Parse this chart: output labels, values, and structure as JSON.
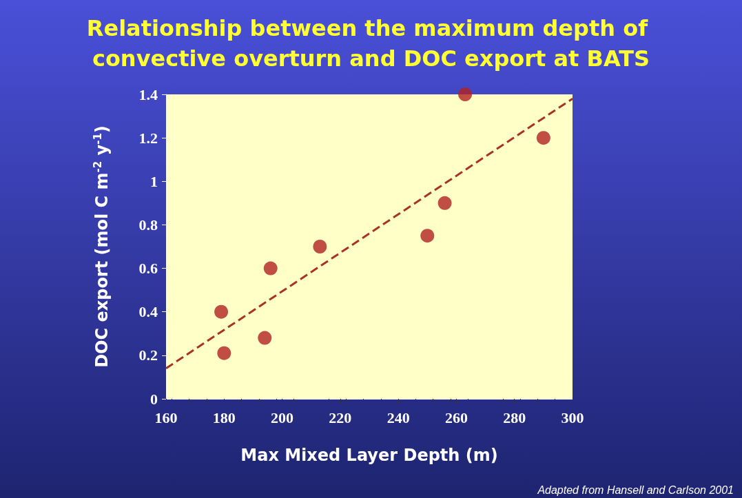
{
  "chart_data": {
    "type": "scatter",
    "title": "Relationship between the maximum depth of convective overturn and DOC export at BATS",
    "xlabel": "Max Mixed Layer Depth (m)",
    "ylabel": "DOC export (mol C m$^{-2}$ y$^{-1}$)",
    "annotations": [
      "Adapted from Hansell and Carlson 2001"
    ],
    "xlim": [
      160,
      300
    ],
    "xticks": [
      160,
      180,
      200,
      220,
      240,
      260,
      280,
      300
    ],
    "ylim": [
      0,
      1.4
    ],
    "yticks": [
      0,
      0.2,
      0.4,
      0.6,
      0.8,
      1,
      1.2,
      1.4
    ],
    "grid": false,
    "marker": "circle",
    "series": [
      {
        "type": "scatter",
        "color": "#b22222",
        "x": [
          179,
          180,
          194,
          196,
          213,
          250,
          256,
          263,
          290
        ],
        "values": [
          0.4,
          0.21,
          0.28,
          0.6,
          0.7,
          0.75,
          0.9,
          1.4,
          1.2
        ]
      },
      {
        "type": "line",
        "color": "#a83226",
        "line_style": "dashed",
        "marker": "none",
        "x": [
          160,
          300
        ],
        "values": [
          0.14,
          1.38
        ]
      }
    ]
  }
}
